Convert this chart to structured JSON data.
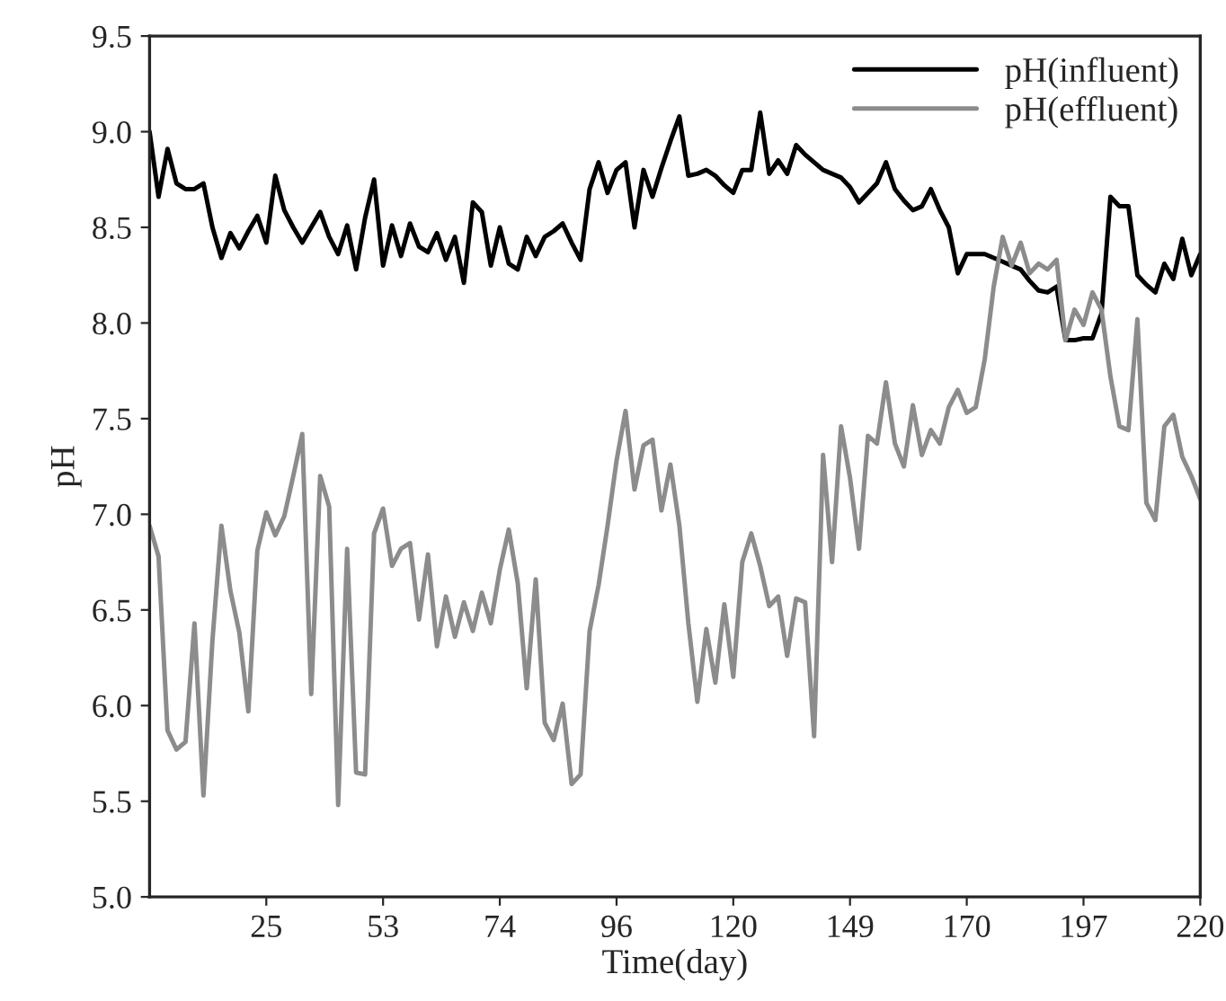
{
  "chart_data": {
    "type": "line",
    "xlabel": "Time(day)",
    "ylabel": "pH",
    "ylim": [
      5.0,
      9.5
    ],
    "categories": [
      null,
      null,
      null,
      null,
      null,
      null,
      null,
      null,
      null,
      null,
      null,
      null,
      null,
      "25",
      null,
      null,
      null,
      null,
      null,
      null,
      null,
      null,
      null,
      null,
      null,
      null,
      "53",
      null,
      null,
      null,
      null,
      null,
      null,
      null,
      null,
      null,
      null,
      null,
      null,
      "74",
      null,
      null,
      null,
      null,
      null,
      null,
      null,
      null,
      null,
      null,
      null,
      null,
      "96",
      null,
      null,
      null,
      null,
      null,
      null,
      null,
      null,
      null,
      null,
      null,
      null,
      "120",
      null,
      null,
      null,
      null,
      null,
      null,
      null,
      null,
      null,
      null,
      null,
      null,
      "149",
      null,
      null,
      null,
      null,
      null,
      null,
      null,
      null,
      null,
      null,
      null,
      null,
      "170",
      null,
      null,
      null,
      null,
      null,
      null,
      null,
      null,
      null,
      null,
      null,
      null,
      "197",
      null,
      null,
      null,
      null,
      null,
      null,
      null,
      null,
      null,
      null,
      null,
      null,
      "220"
    ],
    "yticks": [
      {
        "value": 5.0,
        "label": "5.0"
      },
      {
        "value": 5.5,
        "label": "5.5"
      },
      {
        "value": 6.0,
        "label": "6.0"
      },
      {
        "value": 6.5,
        "label": "6.5"
      },
      {
        "value": 7.0,
        "label": "7.0"
      },
      {
        "value": 7.5,
        "label": "7.5"
      },
      {
        "value": 8.0,
        "label": "8.0"
      },
      {
        "value": 8.5,
        "label": "8.5"
      },
      {
        "value": 9.0,
        "label": "9.0"
      },
      {
        "value": 9.5,
        "label": "9.5"
      }
    ],
    "legend": "top right",
    "line_style": "solid",
    "series": [
      {
        "name": "pH(influent)",
        "color": "#000000",
        "values": [
          9.0,
          8.66,
          8.91,
          8.73,
          8.7,
          8.7,
          8.73,
          8.5,
          8.34,
          8.47,
          8.39,
          8.48,
          8.56,
          8.42,
          8.77,
          8.59,
          8.5,
          8.42,
          8.5,
          8.58,
          8.45,
          8.36,
          8.51,
          8.28,
          8.55,
          8.75,
          8.3,
          8.51,
          8.35,
          8.52,
          8.4,
          8.37,
          8.47,
          8.33,
          8.45,
          8.21,
          8.63,
          8.58,
          8.3,
          8.5,
          8.31,
          8.28,
          8.45,
          8.35,
          8.45,
          8.48,
          8.52,
          8.42,
          8.33,
          8.7,
          8.84,
          8.68,
          8.8,
          8.84,
          8.5,
          8.8,
          8.66,
          8.81,
          8.95,
          9.08,
          8.77,
          8.78,
          8.8,
          8.77,
          8.72,
          8.68,
          8.8,
          8.8,
          9.1,
          8.78,
          8.85,
          8.78,
          8.93,
          8.88,
          8.84,
          8.8,
          8.78,
          8.76,
          8.71,
          8.63,
          8.68,
          8.73,
          8.84,
          8.7,
          8.64,
          8.59,
          8.61,
          8.7,
          8.59,
          8.5,
          8.26,
          8.36,
          8.36,
          8.36,
          8.34,
          8.32,
          8.3,
          8.28,
          8.22,
          8.17,
          8.16,
          8.19,
          7.91,
          7.91,
          7.92,
          7.92,
          8.05,
          8.66,
          8.61,
          8.61,
          8.25,
          8.2,
          8.16,
          8.31,
          8.23,
          8.44,
          8.25,
          8.36
        ]
      },
      {
        "name": "pH(effluent)",
        "color": "#8c8c8c",
        "values": [
          6.94,
          6.78,
          5.87,
          5.77,
          5.81,
          6.43,
          5.53,
          6.34,
          6.94,
          6.6,
          6.38,
          5.97,
          6.81,
          7.01,
          6.89,
          6.99,
          7.2,
          7.42,
          6.06,
          7.2,
          7.04,
          5.48,
          6.82,
          5.65,
          5.64,
          6.9,
          7.03,
          6.73,
          6.82,
          6.85,
          6.45,
          6.79,
          6.31,
          6.57,
          6.36,
          6.54,
          6.39,
          6.59,
          6.43,
          6.71,
          6.92,
          6.64,
          6.09,
          6.66,
          5.91,
          5.82,
          6.01,
          5.59,
          5.64,
          6.39,
          6.63,
          6.94,
          7.28,
          7.54,
          7.13,
          7.36,
          7.39,
          7.02,
          7.26,
          6.94,
          6.43,
          6.02,
          6.4,
          6.12,
          6.53,
          6.15,
          6.75,
          6.9,
          6.73,
          6.52,
          6.57,
          6.26,
          6.56,
          6.54,
          5.84,
          7.31,
          6.75,
          7.46,
          7.19,
          6.82,
          7.41,
          7.37,
          7.69,
          7.37,
          7.25,
          7.57,
          7.31,
          7.44,
          7.37,
          7.56,
          7.65,
          7.53,
          7.56,
          7.81,
          8.19,
          8.45,
          8.3,
          8.42,
          8.26,
          8.31,
          8.28,
          8.33,
          7.91,
          8.07,
          7.99,
          8.16,
          8.07,
          7.72,
          7.46,
          7.44,
          8.02,
          7.06,
          6.97,
          7.46,
          7.52,
          7.3,
          7.2,
          7.08
        ]
      }
    ]
  }
}
